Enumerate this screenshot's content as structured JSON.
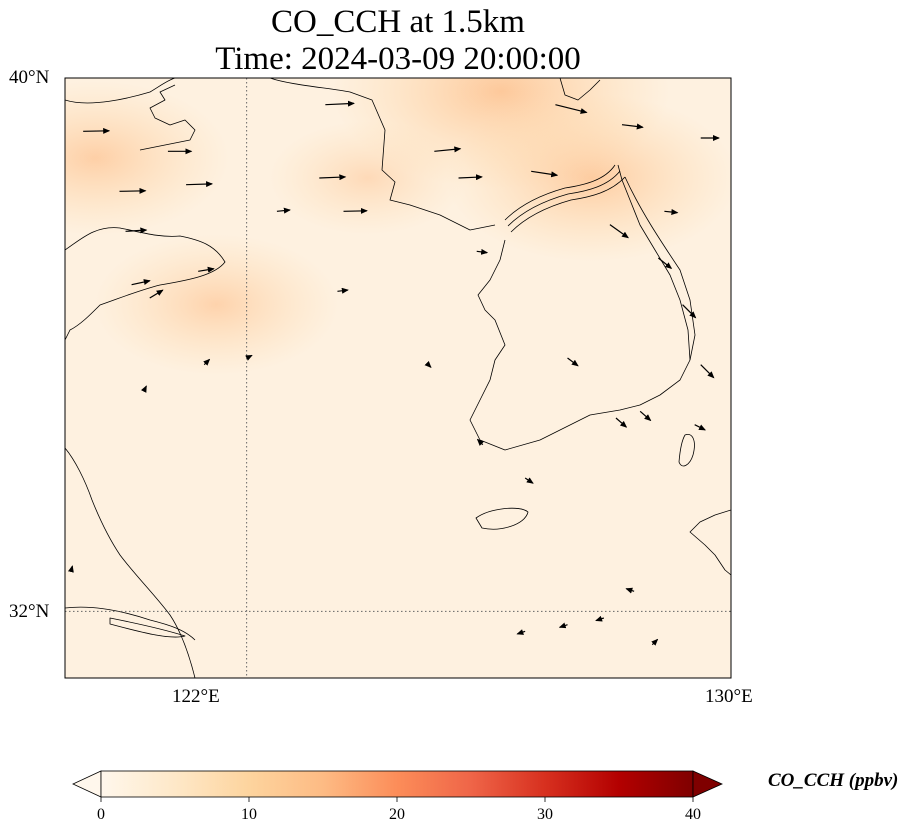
{
  "title": {
    "line1": "CO_CCH at 1.5km",
    "line2": "Time: 2024-03-09 20:00:00"
  },
  "map": {
    "extent": {
      "lon_min": 119,
      "lon_max": 130,
      "lat_min": 31,
      "lat_max": 40
    },
    "gridlines": {
      "lons": [
        122
      ],
      "lats": [
        32
      ],
      "style": "dotted"
    },
    "lat_labels": [
      {
        "lat": 40,
        "text": "40°N"
      },
      {
        "lat": 32,
        "text": "32°N"
      }
    ],
    "lon_labels": [
      {
        "lon": 122,
        "text": "122°E"
      },
      {
        "lon": 130,
        "text": "130°E"
      }
    ],
    "background_color": "#fef1e0",
    "coastline_color": "#000000"
  },
  "colorbar": {
    "label": "CO_CCH (ppbv)",
    "min": 0,
    "max": 40,
    "extend": "both",
    "colormap": "OrRd",
    "colors": [
      "#fff7ec",
      "#fee8c8",
      "#fdd49e",
      "#fdbb84",
      "#fc8d59",
      "#ef6548",
      "#d7301f",
      "#b30000",
      "#7f0000"
    ],
    "ticks": [
      {
        "value": 0,
        "text": "0"
      },
      {
        "value": 10,
        "text": "10"
      },
      {
        "value": 20,
        "text": "20"
      },
      {
        "value": 30,
        "text": "30"
      },
      {
        "value": 40,
        "text": "40"
      }
    ]
  },
  "chart_data": {
    "type": "heatmap",
    "title": "CO_CCH at 1.5km\nTime: 2024-03-09 20:00:00",
    "colorbar_label": "CO_CCH (ppbv)",
    "value_range": [
      0,
      40
    ],
    "concentration_hotspots": [
      {
        "lon": 119.5,
        "lat": 38.8,
        "value": 7
      },
      {
        "lon": 121.5,
        "lat": 36.6,
        "value": 6
      },
      {
        "lon": 126.2,
        "lat": 39.8,
        "value": 10
      },
      {
        "lon": 127.7,
        "lat": 38.5,
        "value": 8
      },
      {
        "lon": 124.0,
        "lat": 38.5,
        "value": 4
      }
    ],
    "background_value": 2,
    "wind_vectors": [
      {
        "lon": 119.3,
        "lat": 39.2,
        "u": 1.0,
        "v": 0.02
      },
      {
        "lon": 119.9,
        "lat": 38.3,
        "u": 1.0,
        "v": 0.02
      },
      {
        "lon": 120.0,
        "lat": 37.7,
        "u": 0.8,
        "v": 0.05
      },
      {
        "lon": 120.1,
        "lat": 36.9,
        "u": 0.7,
        "v": 0.15
      },
      {
        "lon": 120.4,
        "lat": 36.7,
        "u": 0.5,
        "v": 0.3
      },
      {
        "lon": 120.7,
        "lat": 38.9,
        "u": 0.9,
        "v": 0.0
      },
      {
        "lon": 121.0,
        "lat": 38.4,
        "u": 1.0,
        "v": 0.03
      },
      {
        "lon": 121.2,
        "lat": 37.1,
        "u": 0.6,
        "v": 0.1
      },
      {
        "lon": 122.5,
        "lat": 38.0,
        "u": 0.5,
        "v": 0.05
      },
      {
        "lon": 123.3,
        "lat": 39.6,
        "u": 1.1,
        "v": 0.05
      },
      {
        "lon": 123.2,
        "lat": 38.5,
        "u": 1.0,
        "v": 0.04
      },
      {
        "lon": 123.6,
        "lat": 38.0,
        "u": 0.9,
        "v": 0.02
      },
      {
        "lon": 123.5,
        "lat": 36.8,
        "u": 0.4,
        "v": 0.05
      },
      {
        "lon": 125.1,
        "lat": 38.9,
        "u": 1.0,
        "v": 0.1
      },
      {
        "lon": 125.5,
        "lat": 38.5,
        "u": 0.9,
        "v": 0.04
      },
      {
        "lon": 127.1,
        "lat": 39.6,
        "u": 1.2,
        "v": -0.3
      },
      {
        "lon": 126.7,
        "lat": 38.6,
        "u": 1.0,
        "v": -0.15
      },
      {
        "lon": 128.2,
        "lat": 39.3,
        "u": 0.8,
        "v": -0.1
      },
      {
        "lon": 128.9,
        "lat": 38.0,
        "u": 0.5,
        "v": -0.05
      },
      {
        "lon": 129.5,
        "lat": 39.1,
        "u": 0.7,
        "v": 0.0
      },
      {
        "lon": 128.0,
        "lat": 37.8,
        "u": 0.7,
        "v": -0.5
      },
      {
        "lon": 128.8,
        "lat": 37.3,
        "u": 0.5,
        "v": -0.4
      },
      {
        "lon": 129.2,
        "lat": 36.6,
        "u": 0.5,
        "v": -0.5
      },
      {
        "lon": 129.5,
        "lat": 35.7,
        "u": 0.5,
        "v": -0.5
      },
      {
        "lon": 127.3,
        "lat": 35.8,
        "u": 0.4,
        "v": -0.3
      },
      {
        "lon": 128.1,
        "lat": 34.9,
        "u": 0.4,
        "v": -0.35
      },
      {
        "lon": 128.5,
        "lat": 35.0,
        "u": 0.4,
        "v": -0.35
      },
      {
        "lon": 129.4,
        "lat": 34.8,
        "u": 0.4,
        "v": -0.2
      },
      {
        "lon": 125.8,
        "lat": 37.4,
        "u": 0.4,
        "v": -0.05
      },
      {
        "lon": 126.6,
        "lat": 34.0,
        "u": 0.3,
        "v": -0.2
      },
      {
        "lon": 127.9,
        "lat": 31.9,
        "u": -0.3,
        "v": -0.1
      },
      {
        "lon": 127.3,
        "lat": 31.8,
        "u": -0.3,
        "v": -0.1
      },
      {
        "lon": 126.6,
        "lat": 31.7,
        "u": -0.3,
        "v": -0.1
      },
      {
        "lon": 128.4,
        "lat": 32.3,
        "u": -0.3,
        "v": 0.1
      },
      {
        "lon": 125.0,
        "lat": 35.7,
        "u": 0.1,
        "v": -0.1
      },
      {
        "lon": 125.9,
        "lat": 34.5,
        "u": -0.2,
        "v": 0.2
      },
      {
        "lon": 128.7,
        "lat": 31.5,
        "u": 0.2,
        "v": 0.2
      },
      {
        "lon": 121.3,
        "lat": 35.7,
        "u": 0.2,
        "v": 0.2
      },
      {
        "lon": 120.3,
        "lat": 35.3,
        "u": 0.1,
        "v": 0.2
      },
      {
        "lon": 122.0,
        "lat": 35.8,
        "u": 0.2,
        "v": 0.1
      },
      {
        "lon": 119.1,
        "lat": 32.6,
        "u": 0.05,
        "v": 0.2
      }
    ]
  }
}
